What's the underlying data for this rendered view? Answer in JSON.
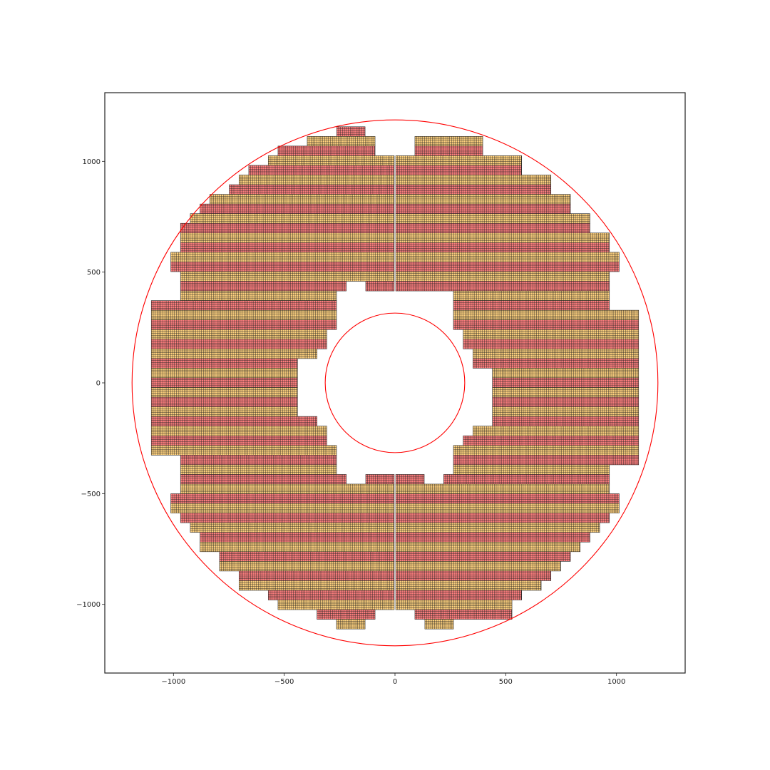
{
  "chart_data": {
    "type": "scatter",
    "subtype": "tiled-sensor-layout",
    "title": "",
    "xlabel": "",
    "ylabel": "",
    "xlim": [
      -1310,
      1310
    ],
    "ylim": [
      -1310,
      1310
    ],
    "grid": false,
    "xticks": [
      -1000,
      -500,
      0,
      500,
      1000
    ],
    "yticks": [
      -1000,
      -500,
      0,
      500,
      1000
    ],
    "xtick_labels": [
      "−1000",
      "−500",
      "0",
      "500",
      "1000"
    ],
    "ytick_labels": [
      "−1000",
      "−500",
      "0",
      "500",
      "1000"
    ],
    "circles": [
      {
        "cx": 0,
        "cy": 0,
        "r": 1187,
        "color": "#ff0000"
      },
      {
        "cx": 0,
        "cy": 0,
        "r": 315,
        "color": "#ff0000"
      }
    ],
    "tile": {
      "width": 43.6,
      "height": 43.6,
      "cells_x": 5,
      "cells_y": 5
    },
    "row_colors": [
      "#ff7f7f",
      "#ffd27f"
    ],
    "tile_edge_color": "#222222",
    "central_gap": 7,
    "tile_rows_upper": [
      {
        "yc": 1134.4,
        "x": [
          [
            -263,
            -135
          ]
        ]
      },
      {
        "yc": 1090.8,
        "x": [
          [
            -396,
            -90
          ]
        ],
        "x_pos": [
          [
            90,
            396
          ]
        ]
      },
      {
        "yc": 1047.2,
        "x": [
          [
            -528,
            -90
          ]
        ],
        "x_pos": [
          [
            90,
            396
          ]
        ]
      },
      {
        "yc": 1003.6,
        "x": [
          [
            -572,
            0
          ]
        ],
        "x_pos": [
          [
            0,
            572
          ]
        ]
      },
      {
        "yc": 960.0,
        "x": [
          [
            -660,
            0
          ]
        ],
        "x_pos": [
          [
            0,
            572
          ]
        ]
      },
      {
        "yc": 916.4,
        "x": [
          [
            -704,
            0
          ]
        ],
        "x_pos": [
          [
            0,
            704
          ]
        ]
      },
      {
        "yc": 872.8,
        "x": [
          [
            -748,
            0
          ]
        ],
        "x_pos": [
          [
            0,
            704
          ]
        ]
      },
      {
        "yc": 829.2,
        "x": [
          [
            -836,
            0
          ]
        ],
        "x_pos": [
          [
            0,
            792
          ]
        ]
      },
      {
        "yc": 785.6,
        "x": [
          [
            -880,
            0
          ]
        ],
        "x_pos": [
          [
            0,
            792
          ]
        ]
      },
      {
        "yc": 742.0,
        "x": [
          [
            -924,
            0
          ]
        ],
        "x_pos": [
          [
            0,
            880
          ]
        ]
      },
      {
        "yc": 698.4,
        "x": [
          [
            -968,
            0
          ]
        ],
        "x_pos": [
          [
            0,
            880
          ]
        ]
      },
      {
        "yc": 654.8,
        "x": [
          [
            -968,
            0
          ]
        ],
        "x_pos": [
          [
            0,
            968
          ]
        ]
      },
      {
        "yc": 611.2,
        "x": [
          [
            -968,
            0
          ]
        ],
        "x_pos": [
          [
            0,
            968
          ]
        ]
      },
      {
        "yc": 567.6,
        "x": [
          [
            -1012,
            0
          ]
        ],
        "x_pos": [
          [
            0,
            1012
          ]
        ]
      },
      {
        "yc": 524.0,
        "x": [
          [
            -1012,
            0
          ]
        ],
        "x_pos": [
          [
            0,
            1012
          ]
        ]
      },
      {
        "yc": 480.4,
        "x": [
          [
            -968,
            0
          ]
        ],
        "x_pos": [
          [
            0,
            968
          ]
        ]
      },
      {
        "yc": 436.8,
        "x": [
          [
            -968,
            -220
          ],
          [
            -132,
            0
          ]
        ],
        "x_pos": [
          [
            0,
            968
          ]
        ]
      },
      {
        "yc": 393.2,
        "x": [
          [
            -968,
            -264
          ]
        ],
        "x_pos": [
          [
            264,
            968
          ]
        ]
      },
      {
        "yc": 349.6,
        "x": [
          [
            -1100,
            -264
          ]
        ],
        "x_pos": [
          [
            264,
            968
          ]
        ]
      },
      {
        "yc": 306.0,
        "x": [
          [
            -1100,
            -264
          ]
        ],
        "x_pos": [
          [
            264,
            1100
          ]
        ]
      },
      {
        "yc": 262.4,
        "x": [
          [
            -1100,
            -264
          ]
        ],
        "x_pos": [
          [
            264,
            1100
          ]
        ]
      },
      {
        "yc": 218.8,
        "x": [
          [
            -1100,
            -308
          ]
        ],
        "x_pos": [
          [
            308,
            1100
          ]
        ]
      },
      {
        "yc": 175.2,
        "x": [
          [
            -1100,
            -308
          ]
        ],
        "x_pos": [
          [
            308,
            1100
          ]
        ]
      },
      {
        "yc": 131.6,
        "x": [
          [
            -1100,
            -352
          ]
        ],
        "x_pos": [
          [
            352,
            1100
          ]
        ]
      },
      {
        "yc": 88.0,
        "x": [
          [
            -1100,
            -440
          ]
        ],
        "x_pos": [
          [
            352,
            1100
          ]
        ]
      },
      {
        "yc": 44.4,
        "x": [
          [
            -1100,
            -440
          ]
        ],
        "x_pos": [
          [
            440,
            1100
          ]
        ]
      },
      {
        "yc": 0.8,
        "x": [
          [
            -1100,
            -440
          ]
        ],
        "x_pos": [
          [
            440,
            1100
          ]
        ]
      }
    ],
    "tile_rows_lower": [
      {
        "yc": -42.8,
        "x": [
          [
            -1100,
            -440
          ]
        ],
        "x_pos": [
          [
            440,
            1100
          ]
        ]
      },
      {
        "yc": -86.4,
        "x": [
          [
            -1100,
            -440
          ]
        ],
        "x_pos": [
          [
            440,
            1100
          ]
        ]
      },
      {
        "yc": -130.0,
        "x": [
          [
            -1100,
            -440
          ]
        ],
        "x_pos": [
          [
            440,
            1100
          ]
        ]
      },
      {
        "yc": -173.6,
        "x": [
          [
            -1100,
            -352
          ]
        ],
        "x_pos": [
          [
            440,
            1100
          ]
        ]
      },
      {
        "yc": -217.2,
        "x": [
          [
            -1100,
            -308
          ]
        ],
        "x_pos": [
          [
            352,
            1100
          ]
        ]
      },
      {
        "yc": -260.8,
        "x": [
          [
            -1100,
            -308
          ]
        ],
        "x_pos": [
          [
            308,
            1100
          ]
        ]
      },
      {
        "yc": -304.4,
        "x": [
          [
            -1100,
            -264
          ]
        ],
        "x_pos": [
          [
            264,
            1100
          ]
        ]
      },
      {
        "yc": -348.0,
        "x": [
          [
            -968,
            -264
          ]
        ],
        "x_pos": [
          [
            264,
            1100
          ]
        ]
      },
      {
        "yc": -391.6,
        "x": [
          [
            -968,
            -264
          ]
        ],
        "x_pos": [
          [
            264,
            968
          ]
        ]
      },
      {
        "yc": -435.2,
        "x": [
          [
            -968,
            -220
          ],
          [
            -132,
            0
          ]
        ],
        "x_pos": [
          [
            0,
            132
          ],
          [
            220,
            968
          ]
        ]
      },
      {
        "yc": -478.8,
        "x": [
          [
            -968,
            0
          ]
        ],
        "x_pos": [
          [
            0,
            968
          ]
        ]
      },
      {
        "yc": -522.4,
        "x": [
          [
            -1012,
            0
          ]
        ],
        "x_pos": [
          [
            0,
            1012
          ]
        ]
      },
      {
        "yc": -566.0,
        "x": [
          [
            -1012,
            0
          ]
        ],
        "x_pos": [
          [
            0,
            1012
          ]
        ]
      },
      {
        "yc": -609.6,
        "x": [
          [
            -968,
            0
          ]
        ],
        "x_pos": [
          [
            0,
            968
          ]
        ]
      },
      {
        "yc": -653.2,
        "x": [
          [
            -924,
            0
          ]
        ],
        "x_pos": [
          [
            0,
            924
          ]
        ]
      },
      {
        "yc": -696.8,
        "x": [
          [
            -880,
            0
          ]
        ],
        "x_pos": [
          [
            0,
            880
          ]
        ]
      },
      {
        "yc": -740.4,
        "x": [
          [
            -880,
            0
          ]
        ],
        "x_pos": [
          [
            0,
            836
          ]
        ]
      },
      {
        "yc": -784.0,
        "x": [
          [
            -792,
            0
          ]
        ],
        "x_pos": [
          [
            0,
            792
          ]
        ]
      },
      {
        "yc": -827.6,
        "x": [
          [
            -792,
            0
          ]
        ],
        "x_pos": [
          [
            0,
            748
          ]
        ]
      },
      {
        "yc": -871.2,
        "x": [
          [
            -704,
            0
          ]
        ],
        "x_pos": [
          [
            0,
            704
          ]
        ]
      },
      {
        "yc": -914.8,
        "x": [
          [
            -704,
            0
          ]
        ],
        "x_pos": [
          [
            0,
            660
          ]
        ]
      },
      {
        "yc": -958.4,
        "x": [
          [
            -572,
            0
          ]
        ],
        "x_pos": [
          [
            0,
            572
          ]
        ]
      },
      {
        "yc": -1002.0,
        "x": [
          [
            -528,
            0
          ]
        ],
        "x_pos": [
          [
            0,
            528
          ]
        ]
      },
      {
        "yc": -1045.6,
        "x": [
          [
            -352,
            -90
          ]
        ],
        "x_pos": [
          [
            90,
            528
          ]
        ]
      },
      {
        "yc": -1089.2,
        "x": [
          [
            -264,
            -135
          ]
        ],
        "x_pos": [
          [
            135,
            264
          ]
        ]
      }
    ]
  }
}
